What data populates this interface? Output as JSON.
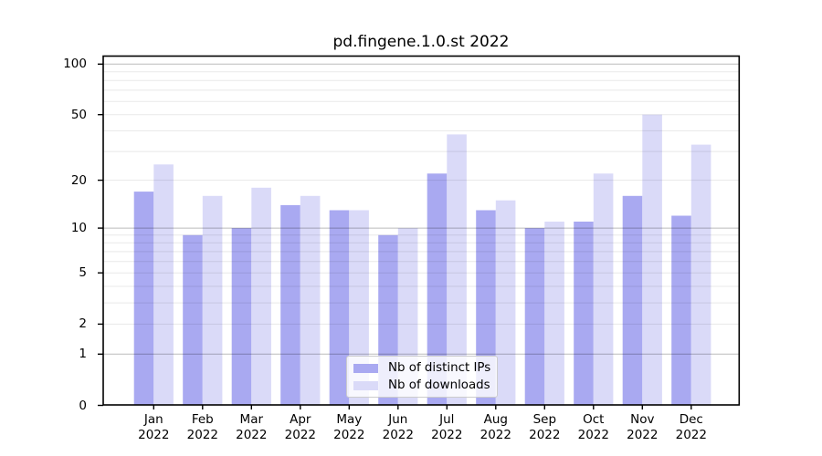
{
  "chart_data": {
    "type": "bar",
    "title": "pd.fingene.1.0.st 2022",
    "categories": [
      "Jan",
      "Feb",
      "Mar",
      "Apr",
      "May",
      "Jun",
      "Jul",
      "Aug",
      "Sep",
      "Oct",
      "Nov",
      "Dec"
    ],
    "x_tick_year": "2022",
    "series": [
      {
        "name": "Nb of distinct IPs",
        "color": "#a9a9f1",
        "values": [
          17,
          9,
          10,
          14,
          13,
          9,
          22,
          13,
          10,
          11,
          16,
          12
        ]
      },
      {
        "name": "Nb of downloads",
        "color": "#dadaf8",
        "values": [
          25,
          16,
          18,
          16,
          13,
          10,
          38,
          15,
          11,
          22,
          50,
          33
        ]
      }
    ],
    "y_scale": "log1p",
    "ylim": [
      0,
      112
    ],
    "y_ticks": [
      0,
      1,
      2,
      5,
      10,
      20,
      50,
      100
    ],
    "y_tick_labels": [
      "0",
      "1",
      "2",
      "5",
      "10",
      "20",
      "50",
      "100"
    ],
    "gridlines_major": [
      1,
      10,
      100
    ],
    "gridlines_minor": [
      2,
      3,
      4,
      5,
      6,
      7,
      8,
      9,
      20,
      30,
      40,
      50,
      60,
      70,
      80,
      90
    ],
    "grid": "horizontal",
    "legend_position": "bottom-center"
  },
  "colors": {
    "background": "#ffffff",
    "axis": "#000000",
    "grid_major": "rgba(0,0,0,0.27)",
    "grid_minor": "rgba(0,0,0,0.09)",
    "legend_border": "#cccccc",
    "series_distinct_ips": "#a9a9f1",
    "series_downloads": "#dadaf8"
  }
}
